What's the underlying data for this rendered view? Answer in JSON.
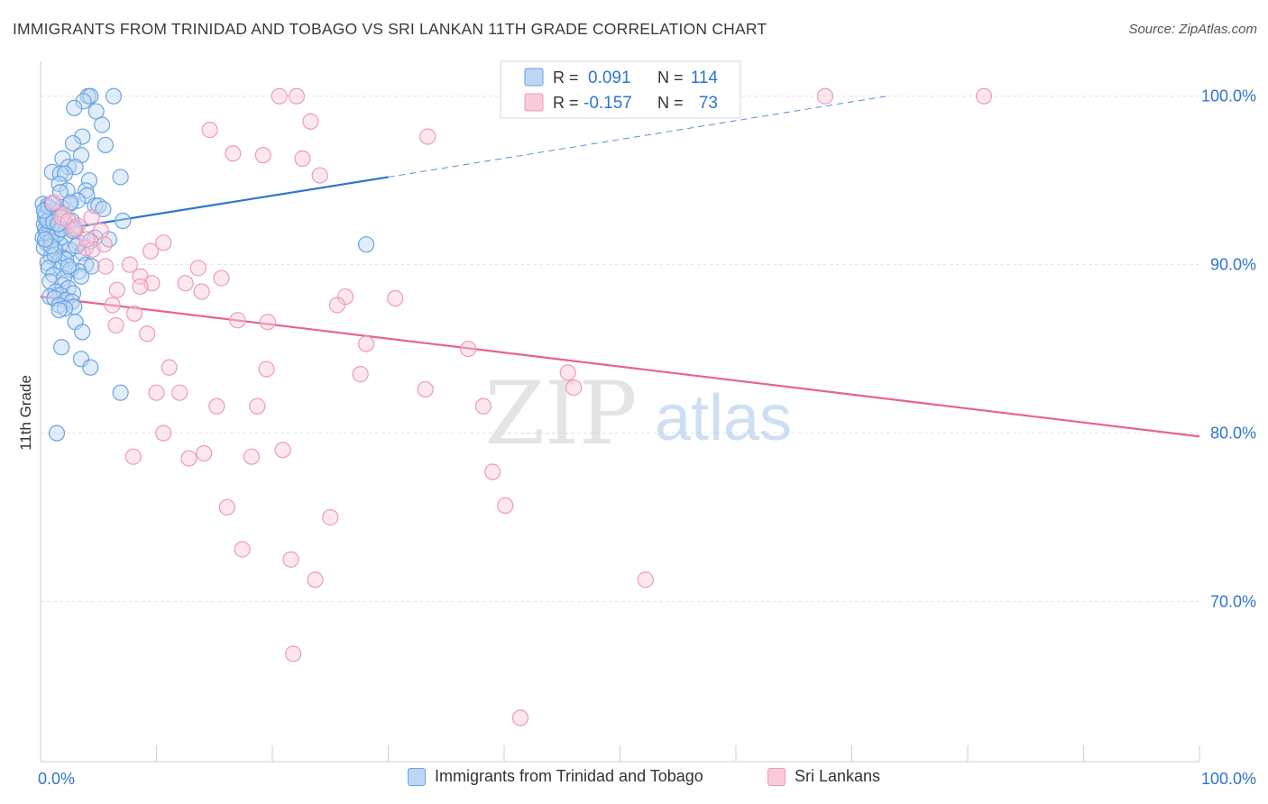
{
  "header": {
    "title": "IMMIGRANTS FROM TRINIDAD AND TOBAGO VS SRI LANKAN 11TH GRADE CORRELATION CHART",
    "source": "Source: ZipAtlas.com"
  },
  "watermark": {
    "zip": "ZIP",
    "atlas": "atlas"
  },
  "legend": {
    "r_label": "R =",
    "n_label": "N =",
    "entries": [
      {
        "r": "0.091",
        "n": "114"
      },
      {
        "r": "-0.157",
        "n": "73"
      }
    ]
  },
  "chart_data": {
    "type": "scatter",
    "title": "IMMIGRANTS FROM TRINIDAD AND TOBAGO VS SRI LANKAN 11TH GRADE CORRELATION CHART",
    "xlabel": "",
    "ylabel": "11th Grade",
    "xlim": [
      0,
      100
    ],
    "ylim": [
      60.5,
      102.5
    ],
    "x_tick_labels": [
      "0.0%",
      "100.0%"
    ],
    "y_ticks": [
      {
        "value": 100,
        "label": "100.0%"
      },
      {
        "value": 90,
        "label": "90.0%"
      },
      {
        "value": 80,
        "label": "80.0%"
      },
      {
        "value": 70,
        "label": "70.0%"
      }
    ],
    "grid": true,
    "series": [
      {
        "name": "Immigrants from Trinidad and Tobago",
        "color": "#6aa3e0",
        "fill": "#bcd6f4",
        "line_color": "#2f74d0",
        "trend": {
          "x0": 0,
          "y0": 91.9,
          "x1": 30,
          "y1": 95.2,
          "dash_to_x": 73,
          "dash_to_y": 100.0
        },
        "points": [
          [
            4.1,
            100
          ],
          [
            4.3,
            100
          ],
          [
            6.3,
            100
          ],
          [
            3.7,
            99.7
          ],
          [
            2.9,
            99.3
          ],
          [
            4.8,
            99.1
          ],
          [
            5.3,
            98.3
          ],
          [
            3.6,
            97.6
          ],
          [
            2.8,
            97.2
          ],
          [
            5.6,
            97.1
          ],
          [
            1.9,
            96.3
          ],
          [
            3.5,
            96.5
          ],
          [
            2.4,
            95.8
          ],
          [
            3.0,
            95.8
          ],
          [
            1.0,
            95.5
          ],
          [
            1.7,
            95.4
          ],
          [
            2.1,
            95.4
          ],
          [
            6.9,
            95.2
          ],
          [
            1.6,
            94.8
          ],
          [
            4.2,
            95.0
          ],
          [
            2.3,
            94.4
          ],
          [
            3.9,
            94.4
          ],
          [
            1.7,
            94.3
          ],
          [
            4.0,
            94.1
          ],
          [
            3.2,
            93.8
          ],
          [
            2.5,
            93.6
          ],
          [
            0.2,
            93.6
          ],
          [
            0.6,
            93.5
          ],
          [
            1.8,
            93.4
          ],
          [
            4.7,
            93.5
          ],
          [
            5.0,
            93.5
          ],
          [
            5.4,
            93.3
          ],
          [
            1.2,
            93.2
          ],
          [
            0.4,
            93.0
          ],
          [
            1.9,
            92.9
          ],
          [
            0.9,
            92.9
          ],
          [
            2.7,
            92.6
          ],
          [
            0.3,
            92.4
          ],
          [
            0.8,
            92.2
          ],
          [
            0.4,
            92.1
          ],
          [
            3.0,
            92.2
          ],
          [
            7.1,
            92.6
          ],
          [
            1.5,
            92.0
          ],
          [
            0.6,
            91.8
          ],
          [
            0.2,
            91.6
          ],
          [
            1.0,
            91.7
          ],
          [
            2.1,
            91.6
          ],
          [
            4.7,
            91.6
          ],
          [
            5.9,
            91.5
          ],
          [
            0.5,
            91.3
          ],
          [
            1.7,
            91.2
          ],
          [
            3.3,
            91.3
          ],
          [
            4.3,
            91.4
          ],
          [
            0.3,
            91.0
          ],
          [
            1.3,
            90.8
          ],
          [
            2.5,
            90.9
          ],
          [
            3.6,
            90.7
          ],
          [
            0.9,
            90.5
          ],
          [
            2.0,
            90.4
          ],
          [
            0.6,
            90.1
          ],
          [
            1.6,
            90.2
          ],
          [
            2.2,
            90.3
          ],
          [
            3.9,
            90.0
          ],
          [
            4.4,
            89.9
          ],
          [
            0.7,
            89.8
          ],
          [
            1.8,
            89.8
          ],
          [
            2.6,
            89.7
          ],
          [
            3.3,
            89.6
          ],
          [
            1.1,
            89.4
          ],
          [
            2.0,
            89.2
          ],
          [
            3.5,
            89.3
          ],
          [
            0.8,
            89.0
          ],
          [
            1.9,
            88.8
          ],
          [
            2.4,
            88.6
          ],
          [
            1.3,
            88.4
          ],
          [
            2.8,
            88.3
          ],
          [
            1.7,
            88.2
          ],
          [
            0.8,
            88.1
          ],
          [
            1.2,
            88.0
          ],
          [
            2.2,
            87.9
          ],
          [
            2.7,
            87.8
          ],
          [
            1.6,
            87.6
          ],
          [
            2.9,
            87.5
          ],
          [
            2.1,
            87.4
          ],
          [
            1.6,
            87.3
          ],
          [
            3.0,
            86.6
          ],
          [
            3.6,
            86.0
          ],
          [
            1.8,
            85.1
          ],
          [
            3.5,
            84.4
          ],
          [
            4.3,
            83.9
          ],
          [
            6.9,
            82.4
          ],
          [
            1.4,
            80.0
          ],
          [
            28.1,
            91.2
          ],
          [
            0.4,
            92.8
          ],
          [
            0.7,
            93.4
          ],
          [
            1.5,
            93.1
          ],
          [
            2.3,
            92.3
          ],
          [
            0.5,
            91.9
          ],
          [
            0.9,
            91.4
          ],
          [
            1.4,
            91.8
          ],
          [
            2.8,
            92.0
          ],
          [
            0.6,
            92.6
          ],
          [
            1.1,
            92.5
          ],
          [
            1.8,
            92.1
          ],
          [
            0.3,
            93.2
          ],
          [
            2.0,
            93.0
          ],
          [
            3.1,
            91.1
          ],
          [
            1.2,
            90.6
          ],
          [
            2.4,
            89.9
          ],
          [
            0.9,
            91.1
          ],
          [
            1.5,
            92.4
          ],
          [
            0.4,
            91.5
          ],
          [
            2.6,
            93.7
          ],
          [
            1.0,
            93.6
          ]
        ]
      },
      {
        "name": "Sri Lankans",
        "color": "#ee9ab7",
        "fill": "#f8cadb",
        "line_color": "#e7638f",
        "trend": {
          "x0": 0,
          "y0": 88.1,
          "x1": 100,
          "y1": 79.8
        },
        "points": [
          [
            20.6,
            100
          ],
          [
            22.1,
            100
          ],
          [
            67.7,
            100
          ],
          [
            81.4,
            100
          ],
          [
            23.3,
            98.5
          ],
          [
            14.6,
            98.0
          ],
          [
            33.4,
            97.6
          ],
          [
            16.6,
            96.6
          ],
          [
            19.2,
            96.5
          ],
          [
            22.6,
            96.3
          ],
          [
            24.1,
            95.3
          ],
          [
            1.1,
            93.7
          ],
          [
            2.0,
            93.0
          ],
          [
            1.8,
            92.8
          ],
          [
            2.4,
            92.6
          ],
          [
            3.2,
            92.3
          ],
          [
            5.2,
            92.0
          ],
          [
            3.9,
            91.0
          ],
          [
            10.6,
            91.3
          ],
          [
            9.5,
            90.8
          ],
          [
            4.5,
            90.9
          ],
          [
            7.7,
            90.0
          ],
          [
            13.6,
            89.8
          ],
          [
            5.6,
            89.9
          ],
          [
            8.6,
            89.3
          ],
          [
            9.6,
            88.9
          ],
          [
            12.5,
            88.9
          ],
          [
            15.6,
            89.2
          ],
          [
            8.6,
            88.7
          ],
          [
            13.9,
            88.4
          ],
          [
            6.6,
            88.5
          ],
          [
            26.3,
            88.1
          ],
          [
            25.6,
            87.6
          ],
          [
            30.6,
            88.0
          ],
          [
            6.2,
            87.6
          ],
          [
            17.0,
            86.7
          ],
          [
            19.6,
            86.6
          ],
          [
            6.5,
            86.4
          ],
          [
            9.2,
            85.9
          ],
          [
            28.1,
            85.3
          ],
          [
            36.9,
            85.0
          ],
          [
            11.1,
            83.9
          ],
          [
            19.5,
            83.8
          ],
          [
            27.6,
            83.5
          ],
          [
            45.5,
            83.6
          ],
          [
            46.0,
            82.7
          ],
          [
            33.2,
            82.6
          ],
          [
            10.0,
            82.4
          ],
          [
            12.0,
            82.4
          ],
          [
            15.2,
            81.6
          ],
          [
            18.7,
            81.6
          ],
          [
            38.2,
            81.6
          ],
          [
            10.6,
            80.0
          ],
          [
            20.9,
            79.0
          ],
          [
            14.1,
            78.8
          ],
          [
            8.0,
            78.6
          ],
          [
            12.8,
            78.5
          ],
          [
            18.2,
            78.6
          ],
          [
            39.0,
            77.7
          ],
          [
            40.1,
            75.7
          ],
          [
            16.1,
            75.6
          ],
          [
            25.0,
            75.0
          ],
          [
            17.4,
            73.1
          ],
          [
            21.6,
            72.5
          ],
          [
            23.7,
            71.3
          ],
          [
            52.2,
            71.3
          ],
          [
            21.8,
            66.9
          ],
          [
            41.4,
            63.1
          ],
          [
            4.0,
            91.5
          ],
          [
            5.5,
            91.2
          ],
          [
            2.9,
            92.1
          ],
          [
            4.4,
            92.8
          ],
          [
            8.1,
            87.1
          ]
        ]
      }
    ]
  },
  "bottom_legend": {
    "items": [
      {
        "label": "Immigrants from Trinidad and Tobago"
      },
      {
        "label": "Sri Lankans"
      }
    ]
  }
}
